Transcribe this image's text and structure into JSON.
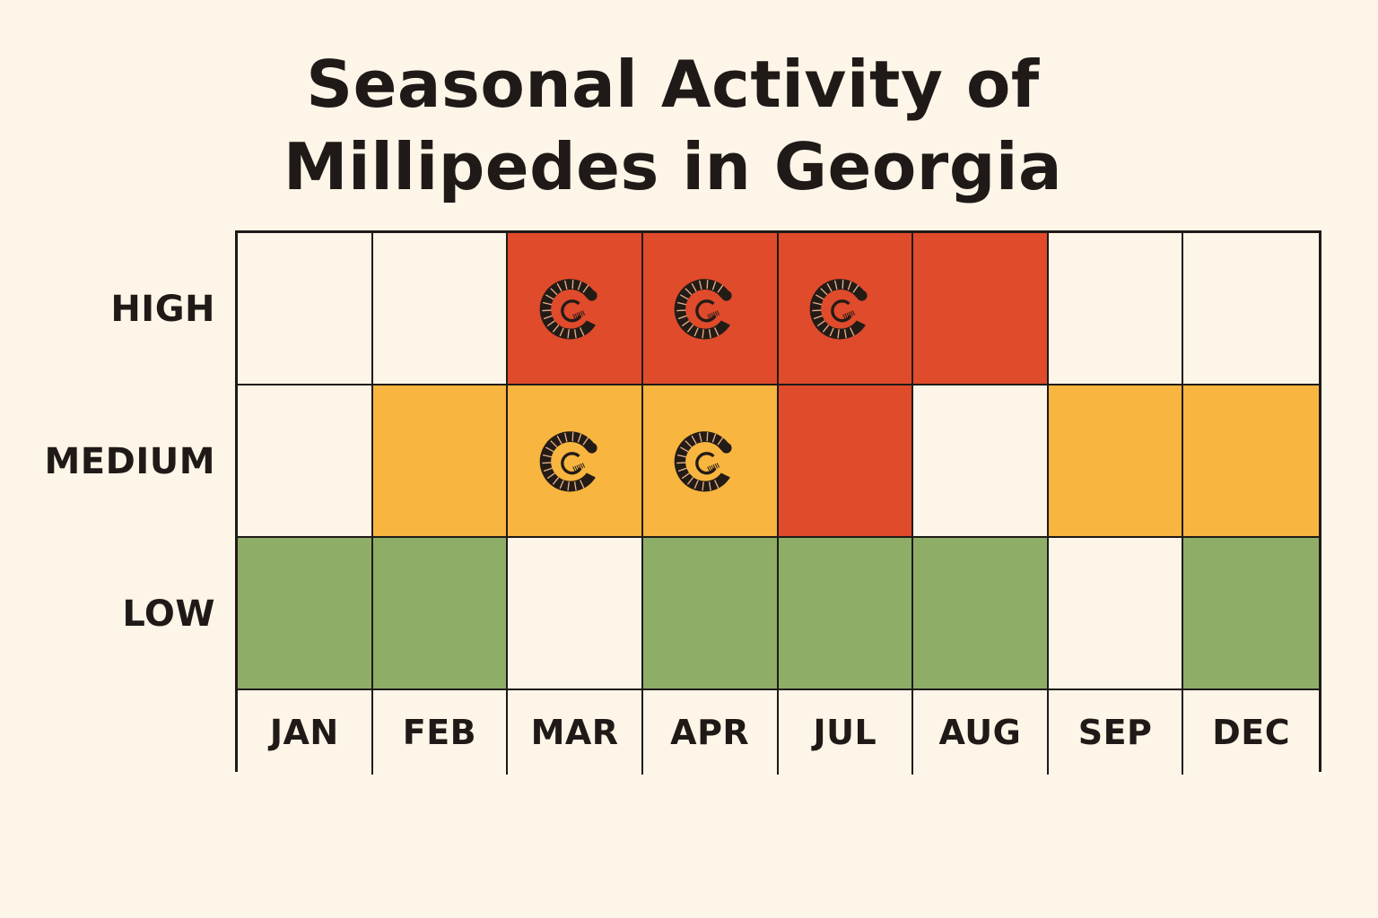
{
  "chart_data": {
    "type": "heatmap",
    "title_lines": [
      "Seasonal Activity of",
      "Millipedes in Georgia"
    ],
    "rows": [
      "HIGH",
      "MEDIUM",
      "LOW"
    ],
    "columns": [
      "JAN",
      "FEB",
      "MAR",
      "APR",
      "JUL",
      "AUG",
      "SEP",
      "DEC"
    ],
    "cells": [
      [
        "empty",
        "empty",
        "high",
        "high",
        "high",
        "high",
        "empty",
        "empty"
      ],
      [
        "empty",
        "medium",
        "medium",
        "medium",
        "high",
        "empty",
        "medium",
        "medium"
      ],
      [
        "low",
        "low",
        "empty",
        "low",
        "low",
        "low",
        "empty",
        "low"
      ]
    ],
    "millipede_icons": [
      [
        false,
        false,
        true,
        true,
        true,
        false,
        false,
        false
      ],
      [
        false,
        false,
        true,
        true,
        false,
        false,
        false,
        false
      ],
      [
        false,
        false,
        false,
        false,
        false,
        false,
        false,
        false
      ]
    ],
    "colors": {
      "high": "#df4b2b",
      "medium": "#f8b53f",
      "low": "#8eae68",
      "empty": "#fdf5e8"
    },
    "icon": "millipede-curled-icon"
  }
}
